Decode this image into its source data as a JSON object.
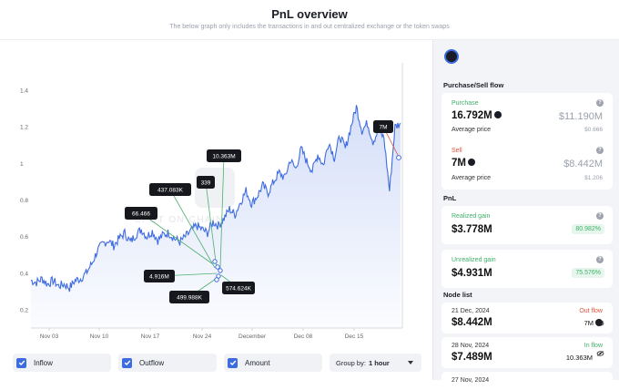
{
  "header": {
    "title": "PnL overview",
    "subtitle": "The below graph only includes the transactions in and out centralized exchange or the token swaps"
  },
  "chart_data": {
    "type": "line",
    "y_ticks": [
      "1.4",
      "1.2",
      "1",
      "0.8",
      "0.6",
      "0.4",
      "0.2"
    ],
    "x_ticks": [
      "Nov 03",
      "Nov 10",
      "Nov 17",
      "Nov 24",
      "December",
      "Dec 08",
      "Dec 15"
    ],
    "ylim": [
      0.1,
      1.5
    ],
    "watermark": "SPOT ON CHAIN",
    "color": "#3d6be0",
    "annotations": [
      {
        "label": "7M",
        "kind": "outflow"
      },
      {
        "label": "10.363M",
        "kind": "inflow"
      },
      {
        "label": "339",
        "kind": "inflow"
      },
      {
        "label": "437.083K",
        "kind": "inflow"
      },
      {
        "label": "66.466",
        "kind": "inflow"
      },
      {
        "label": "4.916M",
        "kind": "inflow"
      },
      {
        "label": "499.988K",
        "kind": "inflow"
      },
      {
        "label": "574.624K",
        "kind": "inflow"
      }
    ],
    "series": [
      {
        "values": [
          0.36,
          0.35,
          0.37,
          0.34,
          0.36,
          0.33,
          0.34,
          0.32,
          0.36,
          0.37,
          0.4,
          0.45,
          0.52,
          0.56,
          0.58,
          0.55,
          0.59,
          0.62,
          0.57,
          0.61,
          0.64,
          0.6,
          0.63,
          0.58,
          0.61,
          0.62,
          0.59,
          0.57,
          0.6,
          0.63,
          0.66,
          0.64,
          0.62,
          0.68,
          0.66,
          0.7,
          0.75,
          0.72,
          0.79,
          0.85,
          0.78,
          0.82,
          0.88,
          0.84,
          0.9,
          0.95,
          0.92,
          1.02,
          0.97,
          1.08,
          1.01,
          0.96,
          1.05,
          0.99,
          1.12,
          1.03,
          1.15,
          1.08,
          1.2,
          1.31,
          1.18,
          1.22,
          1.12,
          1.18,
          1.14,
          0.85,
          1.2,
          1.22
        ]
      }
    ]
  },
  "controls": {
    "inflow": "Inflow",
    "outflow": "Outflow",
    "amount": "Amount",
    "group_by_label": "Group by:",
    "group_by_value": "1 hour"
  },
  "panel": {
    "flow_title": "Purchase/Sell flow",
    "purchase": {
      "label": "Purchase",
      "amount": "16.792M",
      "usd": "$11.190M",
      "avg_label": "Average price",
      "avg": "$0.666"
    },
    "sell": {
      "label": "Sell",
      "amount": "7M",
      "usd": "$8.442M",
      "avg_label": "Average price",
      "avg": "$1.206"
    },
    "pnl_title": "PnL",
    "realized": {
      "label": "Realized gain",
      "value": "$3.778M",
      "pct": "80.982%"
    },
    "unrealized": {
      "label": "Unrealized gain",
      "value": "$4.931M",
      "pct": "75.576%"
    },
    "node_title": "Node list",
    "nodes": [
      {
        "date": "21 Dec, 2024",
        "value": "$8.442M",
        "flow": "Out flow",
        "amount": "7M"
      },
      {
        "date": "28 Nov, 2024",
        "value": "$7.489M",
        "flow": "In flow",
        "amount": "10.363M"
      },
      {
        "date": "27 Nov, 2024",
        "value": "",
        "flow": "",
        "amount": ""
      }
    ]
  }
}
